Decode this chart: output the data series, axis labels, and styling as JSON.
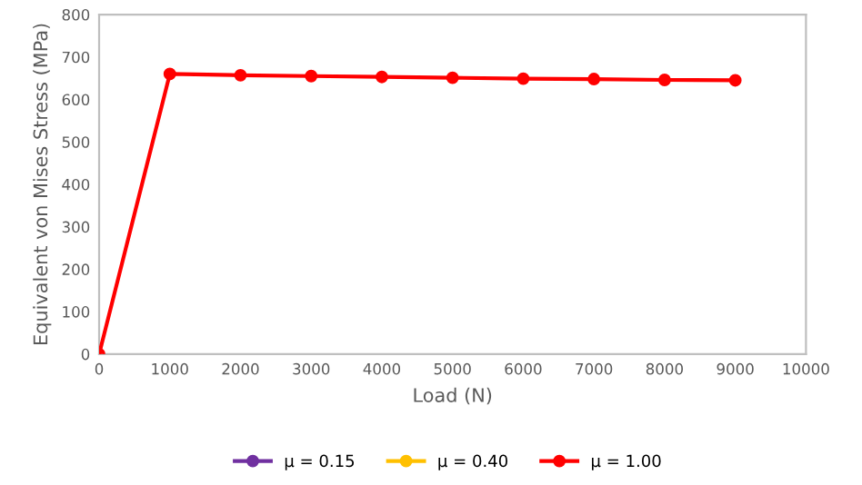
{
  "chart_data": {
    "type": "line",
    "xlabel": "Load (N)",
    "ylabel": "Equivalent von Mises Stress (MPa)",
    "x": [
      0,
      1000,
      2000,
      3000,
      4000,
      5000,
      6000,
      7000,
      8000,
      9000
    ],
    "series": [
      {
        "name": "μ = 0.15",
        "color": "#7030a0",
        "values": [
          null,
          null,
          null,
          null,
          null,
          null,
          null,
          null,
          null,
          null
        ]
      },
      {
        "name": "μ = 0.40",
        "color": "#ffc000",
        "values": [
          null,
          null,
          null,
          null,
          null,
          null,
          null,
          null,
          null,
          null
        ]
      },
      {
        "name": "μ = 1.00",
        "color": "#ff0000",
        "values": [
          0,
          660,
          657,
          655,
          653,
          651,
          649,
          648,
          646,
          645
        ]
      }
    ],
    "xlim": [
      0,
      10000
    ],
    "xticks": [
      0,
      1000,
      2000,
      3000,
      4000,
      5000,
      6000,
      7000,
      8000,
      9000,
      10000
    ],
    "ylim": [
      0,
      800
    ],
    "yticks": [
      0,
      100,
      200,
      300,
      400,
      500,
      600,
      700,
      800
    ],
    "grid": false,
    "legend": "bottom",
    "marker": "circle",
    "line_style": "solid"
  }
}
